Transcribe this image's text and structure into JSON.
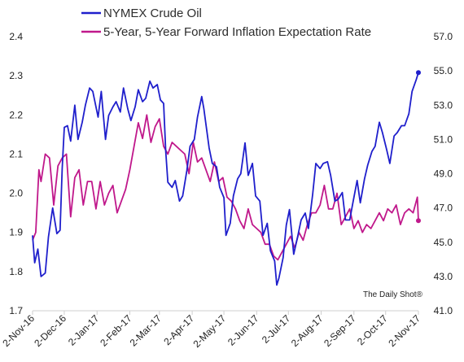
{
  "chart_data": {
    "type": "line",
    "title": "",
    "watermark": "The Daily Shot®",
    "legend_position": "top-left",
    "grid": false,
    "x_tick_labels": [
      "2-Nov-16",
      "2-Dec-16",
      "2-Jan-17",
      "2-Feb-17",
      "2-Mar-17",
      "2-Apr-17",
      "2-May-17",
      "2-Jun-17",
      "2-Jul-17",
      "2-Aug-17",
      "2-Sep-17",
      "2-Oct-17",
      "2-Nov-17"
    ],
    "x_ticks": [
      "2016-11-02",
      "2016-12-02",
      "2017-01-02",
      "2017-02-02",
      "2017-03-02",
      "2017-04-02",
      "2017-05-02",
      "2017-06-02",
      "2017-07-02",
      "2017-08-02",
      "2017-09-02",
      "2017-10-02",
      "2017-11-02"
    ],
    "x_range": [
      "2016-11-02",
      "2017-11-02"
    ],
    "y_left": {
      "range": [
        1.7,
        2.4
      ],
      "ticks": [
        1.7,
        1.8,
        1.9,
        2.0,
        2.1,
        2.2,
        2.3,
        2.4
      ],
      "tick_labels": [
        "1.7",
        "1.8",
        "1.9",
        "2.0",
        "2.1",
        "2.2",
        "2.3",
        "2.4"
      ]
    },
    "y_right": {
      "range": [
        41.0,
        57.0
      ],
      "ticks": [
        41.0,
        43.0,
        45.0,
        47.0,
        49.0,
        51.0,
        53.0,
        55.0,
        57.0
      ],
      "tick_labels": [
        "41.0",
        "43.0",
        "45.0",
        "47.0",
        "49.0",
        "51.0",
        "53.0",
        "55.0",
        "57.0"
      ]
    },
    "series": [
      {
        "name": "NYMEX Crude Oil",
        "axis": "right",
        "color": "#1f1fcc",
        "end_marker": true,
        "x": [
          "2016-11-02",
          "2016-11-04",
          "2016-11-07",
          "2016-11-10",
          "2016-11-14",
          "2016-11-17",
          "2016-11-21",
          "2016-11-25",
          "2016-11-28",
          "2016-11-30",
          "2016-12-02",
          "2016-12-05",
          "2016-12-08",
          "2016-12-12",
          "2016-12-15",
          "2016-12-19",
          "2016-12-22",
          "2016-12-26",
          "2016-12-29",
          "2017-01-03",
          "2017-01-06",
          "2017-01-10",
          "2017-01-13",
          "2017-01-17",
          "2017-01-20",
          "2017-01-24",
          "2017-01-27",
          "2017-01-31",
          "2017-02-03",
          "2017-02-07",
          "2017-02-10",
          "2017-02-14",
          "2017-02-17",
          "2017-02-21",
          "2017-02-24",
          "2017-02-28",
          "2017-03-03",
          "2017-03-06",
          "2017-03-08",
          "2017-03-10",
          "2017-03-14",
          "2017-03-17",
          "2017-03-21",
          "2017-03-24",
          "2017-03-28",
          "2017-03-31",
          "2017-04-04",
          "2017-04-07",
          "2017-04-11",
          "2017-04-13",
          "2017-04-18",
          "2017-04-21",
          "2017-04-25",
          "2017-04-28",
          "2017-05-02",
          "2017-05-04",
          "2017-05-08",
          "2017-05-11",
          "2017-05-15",
          "2017-05-18",
          "2017-05-22",
          "2017-05-25",
          "2017-05-29",
          "2017-06-01",
          "2017-06-05",
          "2017-06-08",
          "2017-06-12",
          "2017-06-15",
          "2017-06-19",
          "2017-06-21",
          "2017-06-23",
          "2017-06-27",
          "2017-06-30",
          "2017-07-03",
          "2017-07-07",
          "2017-07-11",
          "2017-07-14",
          "2017-07-18",
          "2017-07-21",
          "2017-07-25",
          "2017-07-28",
          "2017-08-01",
          "2017-08-04",
          "2017-08-08",
          "2017-08-11",
          "2017-08-15",
          "2017-08-18",
          "2017-08-22",
          "2017-08-25",
          "2017-08-29",
          "2017-09-01",
          "2017-09-05",
          "2017-09-08",
          "2017-09-12",
          "2017-09-15",
          "2017-09-19",
          "2017-09-22",
          "2017-09-26",
          "2017-09-29",
          "2017-10-03",
          "2017-10-06",
          "2017-10-10",
          "2017-10-13",
          "2017-10-17",
          "2017-10-20",
          "2017-10-24",
          "2017-10-27",
          "2017-10-31",
          "2017-11-02"
        ],
        "values": [
          45.4,
          43.8,
          44.6,
          43.0,
          43.2,
          45.3,
          47.0,
          45.5,
          45.7,
          49.3,
          51.7,
          51.8,
          50.9,
          53.0,
          51.0,
          52.0,
          53.0,
          54.0,
          53.8,
          52.3,
          53.8,
          51.0,
          52.4,
          52.9,
          53.2,
          52.6,
          54.0,
          52.8,
          52.1,
          52.9,
          53.9,
          53.2,
          53.4,
          54.4,
          54.0,
          54.2,
          53.3,
          53.1,
          50.3,
          48.5,
          48.2,
          48.6,
          47.4,
          47.7,
          49.2,
          50.6,
          51.0,
          52.3,
          53.5,
          52.8,
          50.5,
          49.6,
          49.4,
          48.2,
          47.6,
          45.4,
          46.1,
          47.7,
          48.7,
          49.0,
          50.8,
          48.9,
          49.6,
          47.7,
          47.4,
          45.4,
          46.1,
          44.5,
          43.9,
          42.5,
          42.9,
          44.1,
          46.0,
          46.9,
          44.3,
          45.4,
          46.3,
          46.7,
          45.8,
          47.8,
          49.6,
          49.3,
          49.6,
          49.7,
          48.9,
          47.4,
          47.5,
          47.9,
          46.3,
          46.3,
          47.3,
          48.6,
          47.3,
          48.7,
          49.5,
          50.3,
          50.6,
          52.0,
          51.4,
          50.4,
          49.6,
          51.2,
          51.4,
          51.8,
          51.8,
          52.5,
          53.8,
          54.5,
          54.9
        ]
      },
      {
        "name": "5-Year, 5-Year Forward Inflation Expectation Rate",
        "axis": "left",
        "color": "#c0188b",
        "end_marker": true,
        "x": [
          "2016-11-02",
          "2016-11-05",
          "2016-11-08",
          "2016-11-10",
          "2016-11-14",
          "2016-11-18",
          "2016-11-22",
          "2016-11-26",
          "2016-11-30",
          "2016-12-04",
          "2016-12-08",
          "2016-12-12",
          "2016-12-16",
          "2016-12-20",
          "2016-12-24",
          "2016-12-28",
          "2017-01-01",
          "2017-01-05",
          "2017-01-09",
          "2017-01-13",
          "2017-01-17",
          "2017-01-21",
          "2017-01-25",
          "2017-01-29",
          "2017-02-02",
          "2017-02-06",
          "2017-02-10",
          "2017-02-14",
          "2017-02-18",
          "2017-02-22",
          "2017-02-26",
          "2017-03-02",
          "2017-03-06",
          "2017-03-10",
          "2017-03-14",
          "2017-03-18",
          "2017-03-22",
          "2017-03-26",
          "2017-03-30",
          "2017-04-03",
          "2017-04-07",
          "2017-04-11",
          "2017-04-15",
          "2017-04-19",
          "2017-04-23",
          "2017-04-27",
          "2017-05-01",
          "2017-05-05",
          "2017-05-09",
          "2017-05-13",
          "2017-05-17",
          "2017-05-21",
          "2017-05-25",
          "2017-05-29",
          "2017-06-02",
          "2017-06-06",
          "2017-06-10",
          "2017-06-14",
          "2017-06-18",
          "2017-06-22",
          "2017-06-26",
          "2017-06-30",
          "2017-07-04",
          "2017-07-08",
          "2017-07-12",
          "2017-07-16",
          "2017-07-20",
          "2017-07-24",
          "2017-07-28",
          "2017-08-01",
          "2017-08-05",
          "2017-08-09",
          "2017-08-13",
          "2017-08-17",
          "2017-08-21",
          "2017-08-25",
          "2017-08-29",
          "2017-09-02",
          "2017-09-06",
          "2017-09-10",
          "2017-09-14",
          "2017-09-18",
          "2017-09-22",
          "2017-09-26",
          "2017-09-30",
          "2017-10-04",
          "2017-10-08",
          "2017-10-12",
          "2017-10-16",
          "2017-10-20",
          "2017-10-24",
          "2017-10-28",
          "2017-11-01",
          "2017-11-02"
        ],
        "values": [
          1.88,
          1.9,
          2.06,
          2.03,
          2.1,
          2.09,
          1.97,
          2.07,
          2.09,
          2.1,
          1.94,
          2.04,
          2.06,
          1.97,
          2.03,
          2.03,
          1.96,
          2.03,
          1.97,
          2.0,
          2.02,
          1.95,
          1.98,
          2.01,
          2.06,
          2.12,
          2.18,
          2.14,
          2.2,
          2.13,
          2.17,
          2.19,
          2.12,
          2.1,
          2.13,
          2.12,
          2.11,
          2.1,
          2.05,
          2.13,
          2.08,
          2.09,
          2.06,
          2.03,
          2.08,
          2.03,
          2.04,
          1.99,
          1.98,
          1.96,
          1.93,
          1.91,
          1.96,
          1.92,
          1.91,
          1.9,
          1.87,
          1.87,
          1.84,
          1.83,
          1.85,
          1.87,
          1.89,
          1.86,
          1.9,
          1.88,
          1.92,
          1.95,
          1.95,
          1.97,
          2.02,
          1.96,
          1.96,
          2.0,
          1.92,
          1.94,
          1.96,
          1.91,
          1.93,
          1.9,
          1.92,
          1.91,
          1.93,
          1.95,
          1.93,
          1.96,
          1.95,
          1.97,
          1.92,
          1.95,
          1.96,
          1.95,
          1.99,
          1.93
        ]
      }
    ]
  }
}
